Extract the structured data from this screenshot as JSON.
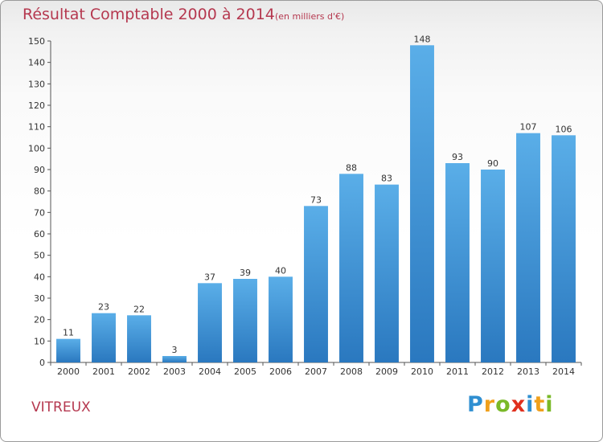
{
  "chart_data": {
    "type": "bar",
    "title": "Résultat Comptable 2000 à 2014",
    "subtitle": "(en milliers d'€)",
    "categories": [
      "2000",
      "2001",
      "2002",
      "2003",
      "2004",
      "2005",
      "2006",
      "2007",
      "2008",
      "2009",
      "2010",
      "2011",
      "2012",
      "2013",
      "2014"
    ],
    "values": [
      11,
      23,
      22,
      3,
      37,
      39,
      40,
      73,
      88,
      83,
      148,
      93,
      90,
      107,
      106
    ],
    "ylim": [
      0,
      150
    ],
    "yticks": [
      0,
      10,
      20,
      30,
      40,
      50,
      60,
      70,
      80,
      90,
      100,
      110,
      120,
      130,
      140,
      150
    ],
    "xlabel": "",
    "ylabel": "",
    "grid": false,
    "bar_color": "#3b8fd6"
  },
  "commune": "VITREUX",
  "logo": {
    "letters": [
      "P",
      "r",
      "o",
      "x",
      "i",
      "t",
      "i"
    ],
    "colors": [
      "#2f8fd1",
      "#f0a01c",
      "#7ab928",
      "#e0301e",
      "#2f8fd1",
      "#f0a01c",
      "#7ab928"
    ]
  }
}
